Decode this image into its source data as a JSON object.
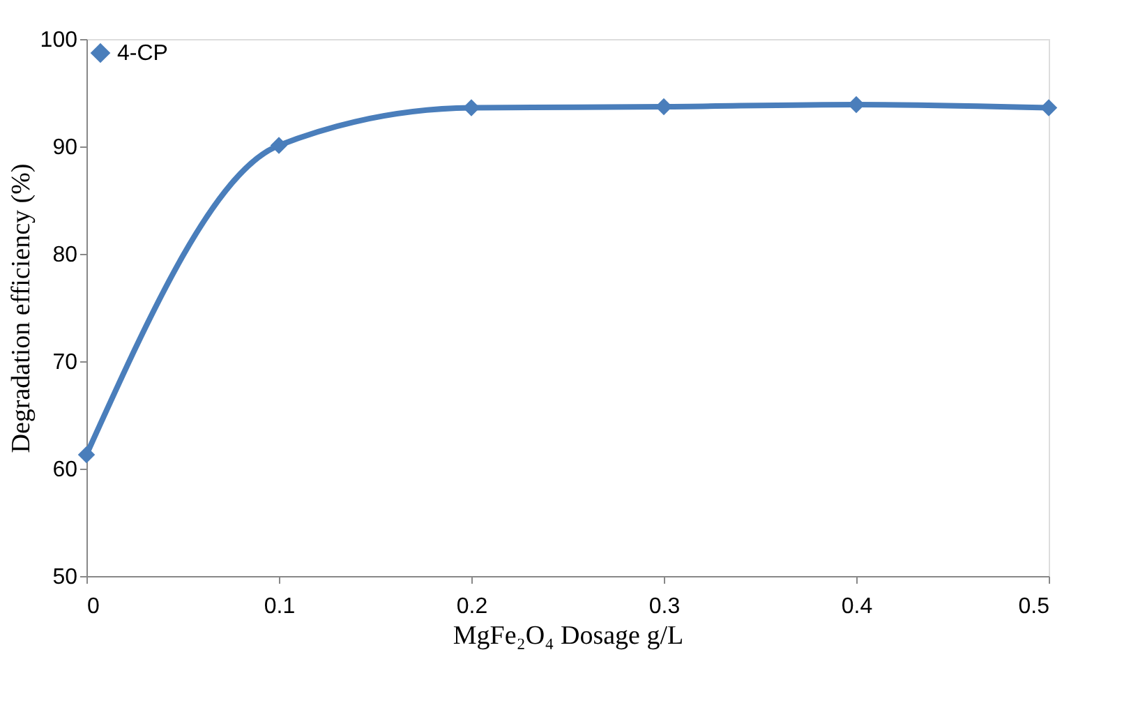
{
  "chart_data": {
    "type": "line",
    "xlabel": "MgFe₂O₄ Dosage  g/L",
    "ylabel": "Degradation efficiency (%)",
    "x": [
      0,
      0.1,
      0.2,
      0.3,
      0.4,
      0.5
    ],
    "series": [
      {
        "name": "4-CP",
        "color": "#4a7ebb",
        "values": [
          61.3,
          90.1,
          93.6,
          93.7,
          93.9,
          93.6
        ]
      }
    ],
    "xlim": [
      0,
      0.5
    ],
    "xticks": [
      0,
      0.1,
      0.2,
      0.3,
      0.4,
      0.5
    ],
    "ylim": [
      50,
      100
    ],
    "yticks": [
      50,
      60,
      70,
      80,
      90,
      100
    ],
    "grid": false,
    "legend": "top left",
    "marker": "diamond",
    "line_style": "solid"
  }
}
